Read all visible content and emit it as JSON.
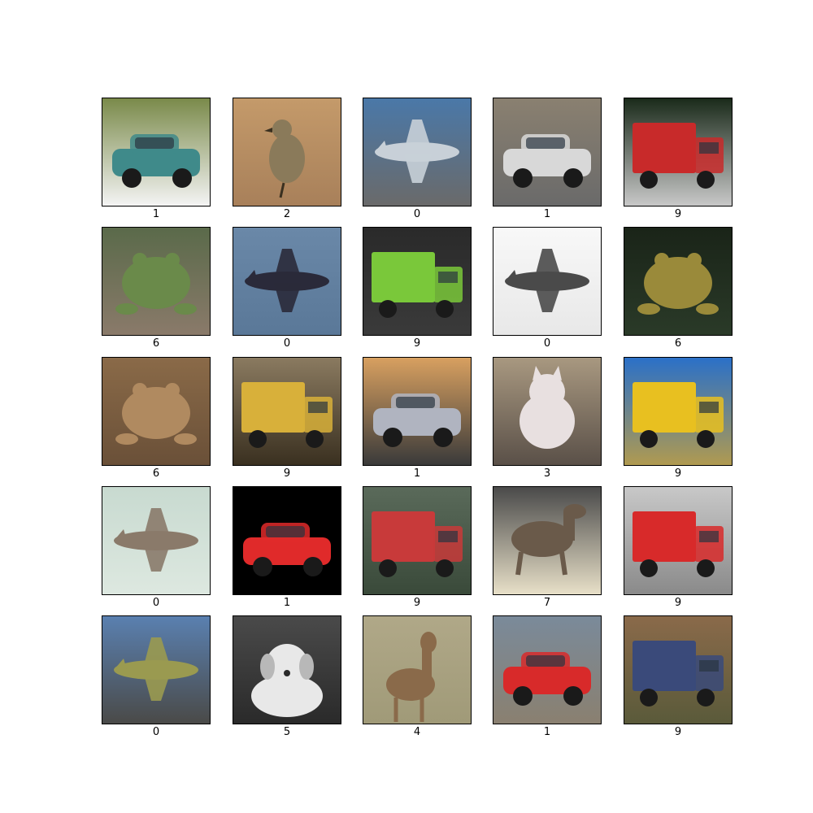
{
  "grid": {
    "rows": 5,
    "cols": 5,
    "images": [
      {
        "label": "1",
        "subject": "car",
        "bg": "#7a8a4a",
        "bg2": "#f4f4f4",
        "obj": "#3f8a8a"
      },
      {
        "label": "2",
        "subject": "bird",
        "bg": "#c49a6a",
        "bg2": "#a8805a",
        "obj": "#8a7a5a"
      },
      {
        "label": "0",
        "subject": "airplane",
        "bg": "#4a78a8",
        "bg2": "#6a6a6a",
        "obj": "#c8d0d8"
      },
      {
        "label": "1",
        "subject": "car",
        "bg": "#8a8070",
        "bg2": "#6a6a6a",
        "obj": "#d8d8d8"
      },
      {
        "label": "9",
        "subject": "truck",
        "bg": "#1a2a1a",
        "bg2": "#c8c8c8",
        "obj": "#c82a2a"
      },
      {
        "label": "6",
        "subject": "frog",
        "bg": "#5a6a4a",
        "bg2": "#8a7a6a",
        "obj": "#6a8a4a"
      },
      {
        "label": "0",
        "subject": "airplane",
        "bg": "#6a88a8",
        "bg2": "#5a7898",
        "obj": "#2a2a3a"
      },
      {
        "label": "9",
        "subject": "truck",
        "bg": "#2a2a2a",
        "bg2": "#3a3a3a",
        "obj": "#7ac83a"
      },
      {
        "label": "0",
        "subject": "airplane",
        "bg": "#f8f8f8",
        "bg2": "#e8e8e8",
        "obj": "#4a4a4a"
      },
      {
        "label": "6",
        "subject": "frog",
        "bg": "#1a2418",
        "bg2": "#2a3a28",
        "obj": "#9a8a3a"
      },
      {
        "label": "6",
        "subject": "frog",
        "bg": "#8a6a48",
        "bg2": "#6a5038",
        "obj": "#b08a60"
      },
      {
        "label": "9",
        "subject": "truck",
        "bg": "#8a7a60",
        "bg2": "#3a3020",
        "obj": "#d8b03a"
      },
      {
        "label": "1",
        "subject": "car",
        "bg": "#d8a060",
        "bg2": "#3a3a3a",
        "obj": "#b0b4c0"
      },
      {
        "label": "3",
        "subject": "cat",
        "bg": "#a89880",
        "bg2": "#5a5048",
        "obj": "#e8e0e0"
      },
      {
        "label": "9",
        "subject": "truck",
        "bg": "#2a70c8",
        "bg2": "#b09a50",
        "obj": "#e8c020"
      },
      {
        "label": "0",
        "subject": "airplane",
        "bg": "#c8dad0",
        "bg2": "#dde8e0",
        "obj": "#8a7a6a"
      },
      {
        "label": "1",
        "subject": "car",
        "bg": "#000000",
        "bg2": "#000000",
        "obj": "#e02a2a"
      },
      {
        "label": "9",
        "subject": "truck",
        "bg": "#5a6a5a",
        "bg2": "#3a4a3a",
        "obj": "#c83a3a"
      },
      {
        "label": "7",
        "subject": "horse",
        "bg": "#4a4a4a",
        "bg2": "#e8e0c8",
        "obj": "#6a5a4a"
      },
      {
        "label": "9",
        "subject": "truck",
        "bg": "#c8c8c8",
        "bg2": "#8a8a8a",
        "obj": "#d82a2a"
      },
      {
        "label": "0",
        "subject": "airplane",
        "bg": "#5a80b0",
        "bg2": "#4a4a48",
        "obj": "#9a9a50"
      },
      {
        "label": "5",
        "subject": "dog",
        "bg": "#4a4a4a",
        "bg2": "#2a2a2a",
        "obj": "#e8e8e8"
      },
      {
        "label": "4",
        "subject": "deer",
        "bg": "#b0a888",
        "bg2": "#a09a78",
        "obj": "#8a6a4a"
      },
      {
        "label": "1",
        "subject": "car",
        "bg": "#7a8a9a",
        "bg2": "#8a8070",
        "obj": "#d82a2a"
      },
      {
        "label": "9",
        "subject": "truck",
        "bg": "#8a6a4a",
        "bg2": "#5a5a3a",
        "obj": "#3a4a7a"
      }
    ]
  }
}
